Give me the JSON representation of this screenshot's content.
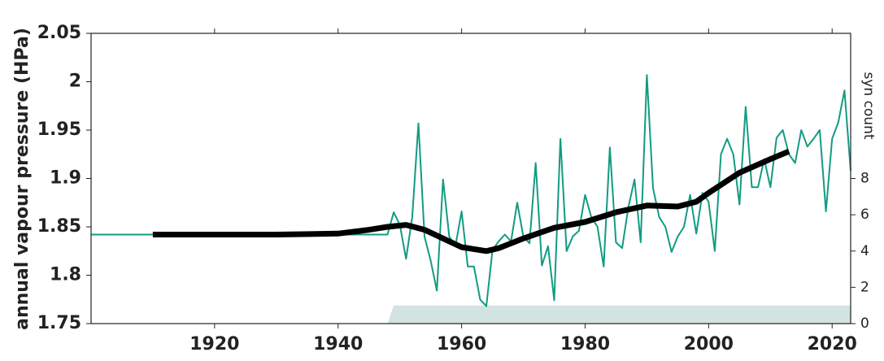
{
  "chart_data": {
    "type": "line",
    "y_label": "annual vapour pressure (HPa)",
    "y2_label": "syn count",
    "xlim": [
      1900,
      2023
    ],
    "xticks": [
      1920,
      1940,
      1960,
      1980,
      2000,
      2020
    ],
    "ylim": [
      1.75,
      2.05
    ],
    "yticks": [
      1.75,
      1.8,
      1.85,
      1.9,
      1.95,
      2,
      2.05
    ],
    "y2lim": [
      0,
      16
    ],
    "y2ticks": [
      0,
      2,
      4,
      6,
      8
    ],
    "series": [
      {
        "color": "#d3e3e1",
        "kind": "area",
        "axis": "y2",
        "x": [
          1948,
          1949,
          2023
        ],
        "values": [
          0,
          1,
          1
        ]
      },
      {
        "color": "#129b82",
        "kind": "line",
        "x": [
          1900,
          1947,
          1948,
          1949,
          1950,
          1951,
          1952,
          1953,
          1954,
          1955,
          1956,
          1957,
          1958,
          1959,
          1960,
          1961,
          1962,
          1963,
          1964,
          1965,
          1966,
          1967,
          1968,
          1969,
          1970,
          1971,
          1972,
          1973,
          1974,
          1975,
          1976,
          1977,
          1978,
          1979,
          1980,
          1981,
          1982,
          1983,
          1984,
          1985,
          1986,
          1987,
          1988,
          1989,
          1990,
          1991,
          1992,
          1993,
          1994,
          1995,
          1996,
          1997,
          1998,
          1999,
          2000,
          2001,
          2002,
          2003,
          2004,
          2005,
          2006,
          2007,
          2008,
          2009,
          2010,
          2011,
          2012,
          2013,
          2014,
          2015,
          2016,
          2017,
          2018,
          2019,
          2020,
          2021,
          2022,
          2023
        ],
        "values": [
          1.842,
          1.842,
          1.842,
          1.865,
          1.852,
          1.817,
          1.86,
          1.957,
          1.84,
          1.815,
          1.784,
          1.899,
          1.84,
          1.83,
          1.866,
          1.809,
          1.809,
          1.775,
          1.768,
          1.826,
          1.835,
          1.842,
          1.835,
          1.875,
          1.84,
          1.833,
          1.916,
          1.81,
          1.83,
          1.774,
          1.941,
          1.825,
          1.84,
          1.846,
          1.883,
          1.86,
          1.85,
          1.809,
          1.932,
          1.834,
          1.828,
          1.87,
          1.899,
          1.834,
          2.007,
          1.89,
          1.86,
          1.85,
          1.824,
          1.84,
          1.85,
          1.883,
          1.843,
          1.885,
          1.876,
          1.825,
          1.925,
          1.941,
          1.925,
          1.873,
          1.974,
          1.891,
          1.891,
          1.92,
          1.891,
          1.942,
          1.95,
          1.925,
          1.916,
          1.95,
          1.933,
          1.941,
          1.95,
          1.866,
          1.941,
          1.958,
          1.991,
          1.908
        ]
      },
      {
        "color": "#000000",
        "kind": "smooth",
        "x": [
          1910,
          1920,
          1930,
          1940,
          1945,
          1948,
          1951,
          1954,
          1957,
          1960,
          1964,
          1966,
          1970,
          1975,
          1980,
          1985,
          1990,
          1995,
          1998,
          2000,
          2005,
          2010,
          2013
        ],
        "values": [
          1.842,
          1.842,
          1.842,
          1.843,
          1.847,
          1.85,
          1.852,
          1.847,
          1.838,
          1.829,
          1.825,
          1.828,
          1.838,
          1.849,
          1.855,
          1.865,
          1.872,
          1.871,
          1.876,
          1.885,
          1.906,
          1.92,
          1.928
        ]
      }
    ]
  }
}
